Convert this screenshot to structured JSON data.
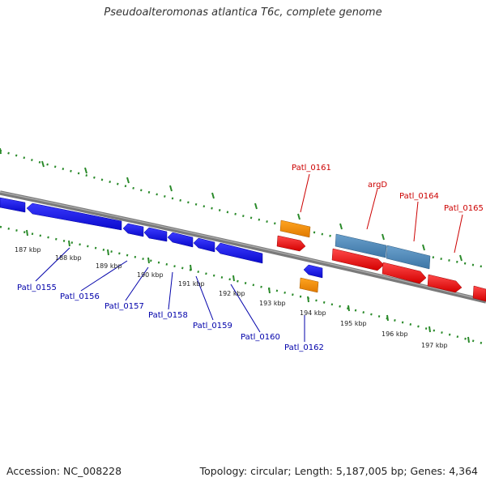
{
  "title": "Pseudoalteromonas atlantica T6c, complete genome",
  "footer": {
    "accession": "Accession: NC_008228",
    "summary": "Topology: circular; Length: 5,187,005 bp; Genes: 4,364"
  },
  "scale_labels": [
    "187 kbp",
    "188 kbp",
    "189 kbp",
    "190 kbp",
    "191 kbp",
    "192 kbp",
    "193 kbp",
    "194 kbp",
    "195 kbp",
    "196 kbp",
    "197 kbp"
  ],
  "gene_labels_top": [
    "Patl_0161",
    "argD",
    "Patl_0164",
    "Patl_0165"
  ],
  "gene_labels_bottom": [
    "Patl_0155",
    "Patl_0156",
    "Patl_0157",
    "Patl_0158",
    "Patl_0159",
    "Patl_0160",
    "Patl_0162"
  ],
  "colors": {
    "backbone": "#808080",
    "forward_cds": "#ee1111",
    "reverse_cds": "#1111dd",
    "rna": "#f08c00",
    "other": "#4682b4",
    "ticks": "#2a8a2a",
    "label_top": "#cc0000",
    "label_bottom": "#0000aa"
  }
}
